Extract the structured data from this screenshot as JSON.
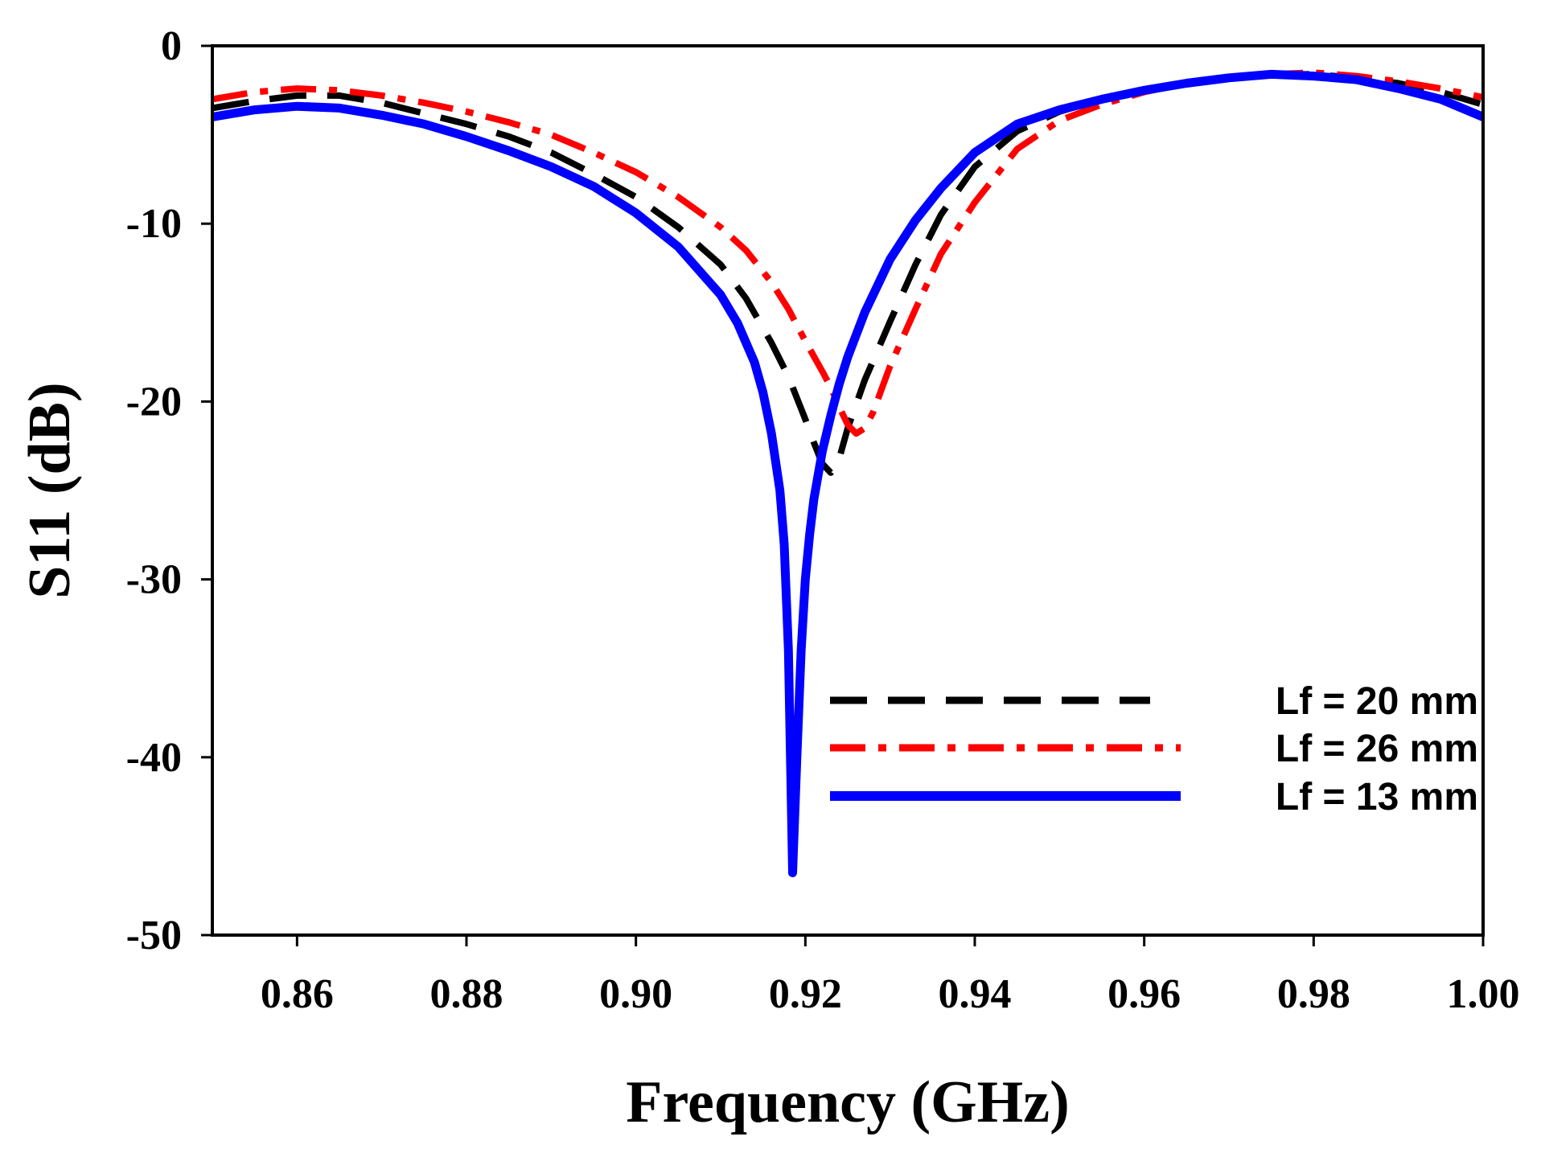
{
  "chart_data": {
    "type": "line",
    "xlabel": "Frequency (GHz)",
    "ylabel": "S11 (dB)",
    "xlim": [
      0.85,
      1.0
    ],
    "ylim": [
      -50,
      0
    ],
    "xticks": [
      0.86,
      0.88,
      0.9,
      0.92,
      0.94,
      0.96,
      0.98,
      1.0
    ],
    "xtick_labels": [
      "0.86",
      "0.88",
      "0.90",
      "0.92",
      "0.94",
      "0.96",
      "0.98",
      "1.00"
    ],
    "yticks": [
      0,
      -10,
      -20,
      -30,
      -40,
      -50
    ],
    "ytick_labels": [
      "0",
      "-10",
      "-20",
      "-30",
      "-40",
      "-50"
    ],
    "grid": false,
    "legend_position": "right",
    "series": [
      {
        "name": "Lf = 20 mm",
        "color": "#000000",
        "style": "dashed",
        "x": [
          0.85,
          0.855,
          0.86,
          0.865,
          0.87,
          0.875,
          0.88,
          0.885,
          0.89,
          0.895,
          0.9,
          0.905,
          0.91,
          0.913,
          0.916,
          0.918,
          0.92,
          0.921,
          0.922,
          0.923,
          0.924,
          0.925,
          0.927,
          0.93,
          0.933,
          0.936,
          0.94,
          0.945,
          0.95,
          0.955,
          0.96,
          0.965,
          0.97,
          0.975,
          0.98,
          0.985,
          0.99,
          0.995,
          1.0
        ],
        "y": [
          -3.5,
          -3.1,
          -2.8,
          -2.8,
          -3.2,
          -3.8,
          -4.4,
          -5.1,
          -6.0,
          -7.2,
          -8.5,
          -10.2,
          -12.3,
          -14.2,
          -16.7,
          -18.6,
          -21.0,
          -22.3,
          -23.5,
          -24.0,
          -23.2,
          -21.5,
          -18.8,
          -15.5,
          -12.3,
          -9.5,
          -6.8,
          -4.8,
          -3.7,
          -3.0,
          -2.5,
          -2.1,
          -1.8,
          -1.6,
          -1.6,
          -1.8,
          -2.1,
          -2.6,
          -3.3
        ]
      },
      {
        "name": "Lf = 26 mm",
        "color": "#ff0000",
        "style": "dashdot",
        "x": [
          0.85,
          0.855,
          0.86,
          0.865,
          0.87,
          0.875,
          0.88,
          0.885,
          0.89,
          0.895,
          0.9,
          0.905,
          0.91,
          0.913,
          0.916,
          0.918,
          0.92,
          0.922,
          0.923,
          0.924,
          0.925,
          0.926,
          0.927,
          0.928,
          0.93,
          0.933,
          0.936,
          0.94,
          0.945,
          0.95,
          0.955,
          0.96,
          0.965,
          0.97,
          0.975,
          0.98,
          0.985,
          0.99,
          0.995,
          1.0
        ],
        "y": [
          -3.0,
          -2.6,
          -2.4,
          -2.5,
          -2.8,
          -3.2,
          -3.7,
          -4.3,
          -5.0,
          -6.0,
          -7.1,
          -8.5,
          -10.2,
          -11.5,
          -13.3,
          -14.8,
          -16.6,
          -18.3,
          -19.2,
          -20.3,
          -21.3,
          -21.8,
          -21.5,
          -20.6,
          -18.0,
          -14.8,
          -11.7,
          -8.8,
          -5.8,
          -4.2,
          -3.3,
          -2.6,
          -2.1,
          -1.8,
          -1.6,
          -1.5,
          -1.7,
          -2.0,
          -2.4,
          -2.9
        ]
      },
      {
        "name": "Lf = 13 mm",
        "color": "#0000ff",
        "style": "solid",
        "x": [
          0.85,
          0.855,
          0.86,
          0.865,
          0.87,
          0.875,
          0.88,
          0.885,
          0.89,
          0.895,
          0.9,
          0.905,
          0.91,
          0.912,
          0.914,
          0.915,
          0.916,
          0.917,
          0.9175,
          0.918,
          0.9185,
          0.919,
          0.9195,
          0.92,
          0.9205,
          0.921,
          0.922,
          0.923,
          0.924,
          0.925,
          0.927,
          0.93,
          0.933,
          0.936,
          0.94,
          0.945,
          0.95,
          0.955,
          0.96,
          0.965,
          0.97,
          0.975,
          0.98,
          0.985,
          0.99,
          0.995,
          1.0
        ],
        "y": [
          -4.0,
          -3.6,
          -3.4,
          -3.5,
          -3.9,
          -4.4,
          -5.1,
          -5.9,
          -6.8,
          -7.9,
          -9.4,
          -11.3,
          -14.0,
          -15.6,
          -17.8,
          -19.5,
          -21.8,
          -25.0,
          -28.0,
          -34.0,
          -46.5,
          -40.0,
          -34.0,
          -30.0,
          -27.5,
          -25.5,
          -22.8,
          -20.8,
          -19.0,
          -17.5,
          -15.0,
          -12.0,
          -9.8,
          -8.0,
          -6.0,
          -4.4,
          -3.6,
          -3.0,
          -2.5,
          -2.1,
          -1.8,
          -1.6,
          -1.7,
          -1.9,
          -2.4,
          -3.0,
          -4.0
        ]
      }
    ]
  }
}
